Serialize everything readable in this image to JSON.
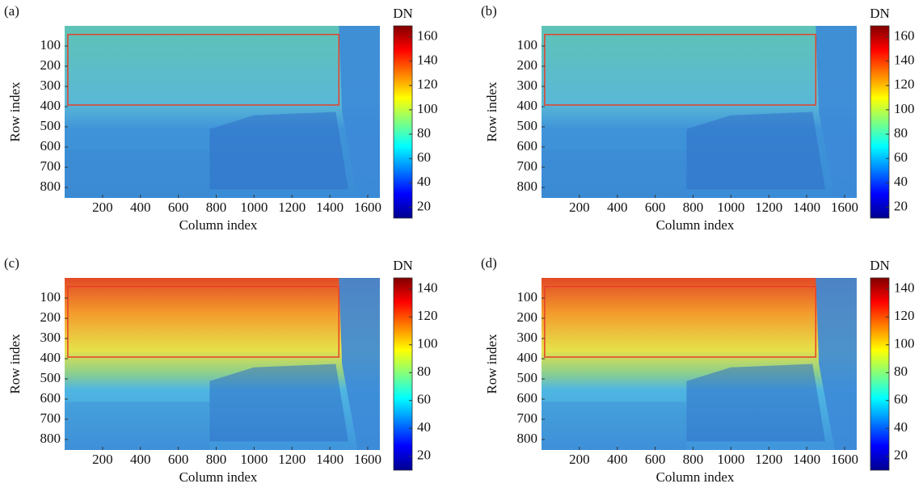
{
  "chart_data": [
    {
      "type": "heatmap",
      "panel_label": "(a)",
      "xlabel": "Column index",
      "ylabel": "Row index",
      "colorbar_label": "DN",
      "xlim": [
        0,
        1664
      ],
      "xticks": [
        200,
        400,
        600,
        800,
        1000,
        1200,
        1400,
        1600
      ],
      "ylim": [
        0,
        852
      ],
      "yticks": [
        100,
        200,
        300,
        400,
        500,
        600,
        700,
        800
      ],
      "clim": [
        11,
        169
      ],
      "cticks": [
        20,
        40,
        60,
        80,
        100,
        120,
        140,
        160
      ],
      "colormap": "jet"
    },
    {
      "type": "heatmap",
      "panel_label": "(b)",
      "xlabel": "Column index",
      "ylabel": "Row index",
      "colorbar_label": "DN",
      "xlim": [
        0,
        1664
      ],
      "xticks": [
        200,
        400,
        600,
        800,
        1000,
        1200,
        1400,
        1600
      ],
      "ylim": [
        0,
        852
      ],
      "yticks": [
        100,
        200,
        300,
        400,
        500,
        600,
        700,
        800
      ],
      "clim": [
        11,
        169
      ],
      "cticks": [
        20,
        40,
        60,
        80,
        100,
        120,
        140,
        160
      ],
      "colormap": "jet"
    },
    {
      "type": "heatmap",
      "panel_label": "(c)",
      "xlabel": "Column index",
      "ylabel": "Row index",
      "colorbar_label": "DN",
      "xlim": [
        0,
        1664
      ],
      "xticks": [
        200,
        400,
        600,
        800,
        1000,
        1200,
        1400,
        1600
      ],
      "ylim": [
        0,
        852
      ],
      "yticks": [
        100,
        200,
        300,
        400,
        500,
        600,
        700,
        800
      ],
      "clim": [
        10,
        148
      ],
      "cticks": [
        20,
        40,
        60,
        80,
        100,
        120,
        140
      ],
      "colormap": "jet"
    },
    {
      "type": "heatmap",
      "panel_label": "(d)",
      "xlabel": "Column index",
      "ylabel": "Row index",
      "colorbar_label": "DN",
      "xlim": [
        0,
        1664
      ],
      "xticks": [
        200,
        400,
        600,
        800,
        1000,
        1200,
        1400,
        1600
      ],
      "ylim": [
        0,
        852
      ],
      "yticks": [
        100,
        200,
        300,
        400,
        500,
        600,
        700,
        800
      ],
      "clim": [
        10,
        148
      ],
      "cticks": [
        20,
        40,
        60,
        80,
        100,
        120,
        140
      ],
      "colormap": "jet"
    }
  ]
}
